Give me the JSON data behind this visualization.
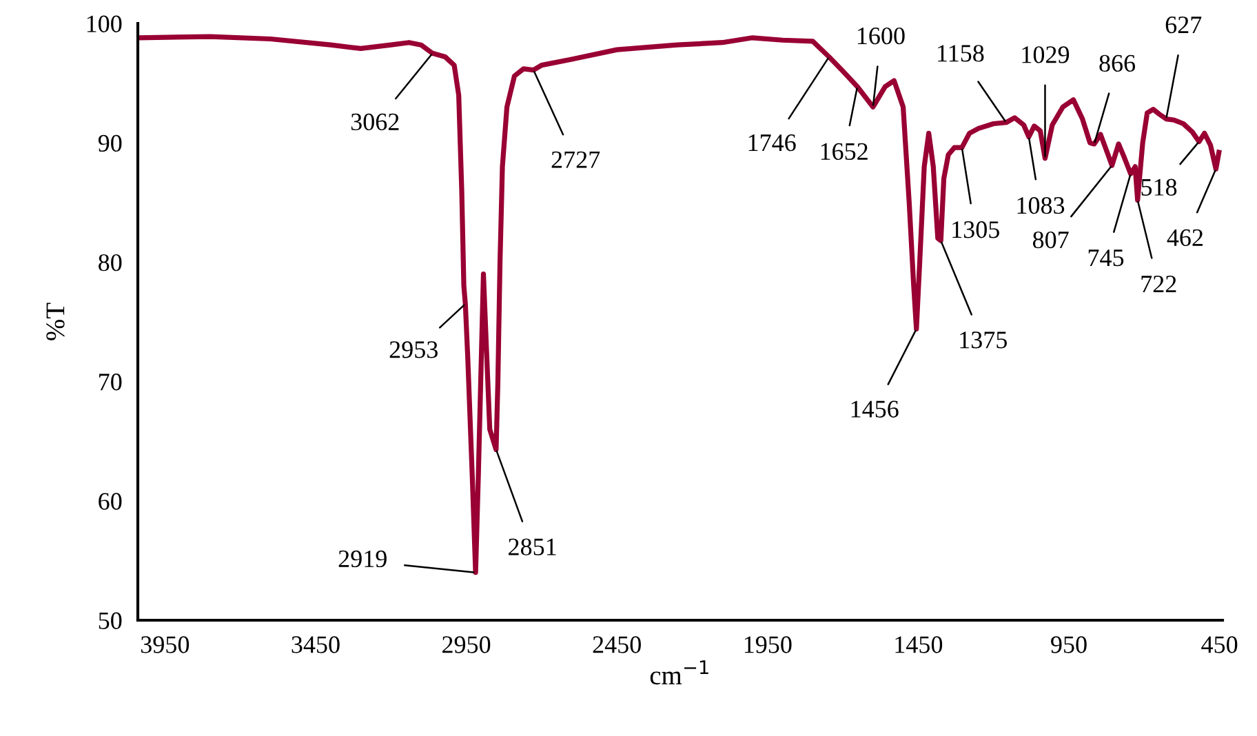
{
  "chart_data": {
    "type": "line",
    "xlabel": "cm$^{−1}$",
    "ylabel": "%T",
    "xlim": [
      4040,
      440
    ],
    "ylim": [
      50,
      100
    ],
    "xticks": [
      3950,
      3450,
      2950,
      2450,
      1950,
      1450,
      950,
      450
    ],
    "yticks": [
      50,
      60,
      70,
      80,
      90,
      100
    ],
    "grid": false,
    "legend": false,
    "marker": "none",
    "line_style": "solid",
    "series": [
      {
        "color": "#990033",
        "x": [
          4040,
          3800,
          3600,
          3400,
          3300,
          3200,
          3140,
          3100,
          3062,
          3020,
          2990,
          2975,
          2965,
          2958,
          2953,
          2945,
          2930,
          2919,
          2910,
          2900,
          2893,
          2885,
          2872,
          2851,
          2845,
          2838,
          2830,
          2815,
          2790,
          2760,
          2727,
          2700,
          2600,
          2450,
          2250,
          2100,
          2000,
          1900,
          1800,
          1746,
          1700,
          1652,
          1600,
          1560,
          1530,
          1500,
          1480,
          1465,
          1456,
          1445,
          1430,
          1415,
          1400,
          1385,
          1375,
          1365,
          1350,
          1330,
          1305,
          1280,
          1250,
          1200,
          1158,
          1130,
          1100,
          1083,
          1065,
          1045,
          1029,
          1005,
          970,
          935,
          905,
          880,
          866,
          845,
          820,
          807,
          785,
          765,
          745,
          730,
          722,
          705,
          690,
          670,
          650,
          627,
          600,
          570,
          540,
          518,
          500,
          480,
          462,
          452
        ],
        "values": [
          98.8,
          98.9,
          98.7,
          98.2,
          97.9,
          98.2,
          98.4,
          98.2,
          97.5,
          97.2,
          96.5,
          94,
          86,
          78,
          76.5,
          72,
          62,
          54,
          62,
          72,
          79,
          74,
          66,
          64.3,
          70,
          80,
          88,
          93,
          95.6,
          96.2,
          96.1,
          96.5,
          97.0,
          97.8,
          98.2,
          98.4,
          98.8,
          98.6,
          98.5,
          97.2,
          96,
          94.7,
          93.0,
          94.7,
          95.2,
          93,
          85,
          78,
          74.4,
          80,
          88,
          90.8,
          88,
          82,
          81.8,
          87,
          89,
          89.6,
          89.6,
          90.8,
          91.2,
          91.6,
          91.7,
          92.1,
          91.5,
          90.5,
          91.4,
          91.0,
          88.7,
          91.5,
          93,
          93.6,
          92,
          90,
          89.9,
          90.7,
          89,
          88.1,
          89.9,
          88.7,
          87.4,
          88,
          85.2,
          90,
          92.5,
          92.8,
          92.4,
          92.0,
          91.9,
          91.6,
          90.9,
          90.1,
          90.8,
          89.8,
          87.8,
          89.2
        ]
      }
    ],
    "annotations": [
      {
        "text": "3062",
        "x": 3062,
        "y": 97.5
      },
      {
        "text": "2727",
        "x": 2727,
        "y": 96.1
      },
      {
        "text": "2953",
        "x": 2953,
        "y": 76.5
      },
      {
        "text": "2919",
        "x": 2919,
        "y": 54
      },
      {
        "text": "2851",
        "x": 2851,
        "y": 64.3
      },
      {
        "text": "1746",
        "x": 1746,
        "y": 97.2
      },
      {
        "text": "1652",
        "x": 1652,
        "y": 94.7
      },
      {
        "text": "1600",
        "x": 1600,
        "y": 93.0
      },
      {
        "text": "1456",
        "x": 1456,
        "y": 74.4
      },
      {
        "text": "1375",
        "x": 1375,
        "y": 81.8
      },
      {
        "text": "1305",
        "x": 1305,
        "y": 89.6
      },
      {
        "text": "1158",
        "x": 1158,
        "y": 91.7
      },
      {
        "text": "1083",
        "x": 1083,
        "y": 90.5
      },
      {
        "text": "1029",
        "x": 1029,
        "y": 88.7
      },
      {
        "text": "866",
        "x": 866,
        "y": 89.9
      },
      {
        "text": "807",
        "x": 807,
        "y": 88.1
      },
      {
        "text": "745",
        "x": 745,
        "y": 87.4
      },
      {
        "text": "722",
        "x": 722,
        "y": 85.2
      },
      {
        "text": "627",
        "x": 627,
        "y": 92.0
      },
      {
        "text": "518",
        "x": 518,
        "y": 90.1
      },
      {
        "text": "462",
        "x": 462,
        "y": 87.8
      }
    ]
  }
}
